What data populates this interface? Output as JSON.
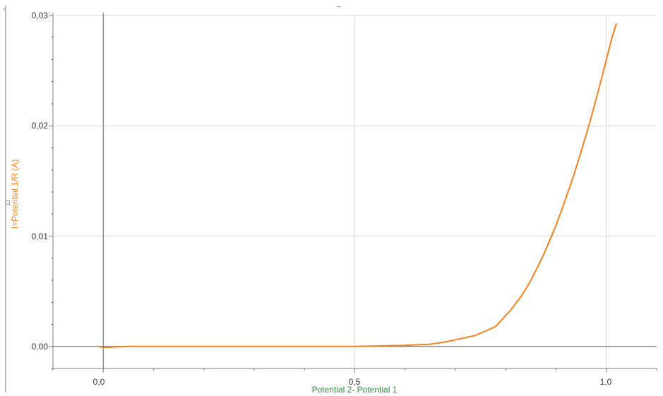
{
  "chart_data": {
    "type": "line",
    "title": "",
    "xlabel": "Potential 2- Potential 1",
    "ylabel": "I=Potential 1/R (A)",
    "xlim": [
      -0.1,
      1.1
    ],
    "ylim": [
      -0.002,
      0.03
    ],
    "x_ticks": [
      "0,0",
      "0,5",
      "1,0"
    ],
    "y_ticks": [
      "0,00",
      "0,01",
      "0,02",
      "0,03"
    ],
    "grid": true,
    "series": [
      {
        "color": "#f5821f",
        "x": [
          -0.01,
          0.0,
          0.05,
          0.1,
          0.2,
          0.3,
          0.4,
          0.5,
          0.6,
          0.65,
          0.68,
          0.7,
          0.72,
          0.74,
          0.76,
          0.78,
          0.79,
          0.8,
          0.81,
          0.82,
          0.83,
          0.84,
          0.85,
          0.86,
          0.87,
          0.88,
          0.89,
          0.9,
          0.91,
          0.92,
          0.93,
          0.94,
          0.95,
          0.96,
          0.97,
          0.98,
          0.99,
          1.0,
          1.01,
          1.02
        ],
        "y": [
          0.0,
          -0.0001,
          0.0,
          0.0,
          0.0,
          0.0,
          0.0,
          0.0,
          0.0001,
          0.0002,
          0.0004,
          0.0006,
          0.0008,
          0.001,
          0.0014,
          0.0018,
          0.0023,
          0.0028,
          0.0033,
          0.0039,
          0.0045,
          0.0052,
          0.006,
          0.0069,
          0.0078,
          0.0088,
          0.0099,
          0.011,
          0.0122,
          0.0135,
          0.0148,
          0.0162,
          0.0177,
          0.0192,
          0.0208,
          0.0225,
          0.0242,
          0.026,
          0.0278,
          0.0293
        ]
      }
    ]
  },
  "header": {
    "marker": "–"
  },
  "colors": {
    "axis_zero": "#666666",
    "grid": "#d9d9d9",
    "frame": "#7a7a7a",
    "xlabel_color": "#2e8b3a",
    "ylabel_color": "#f5821f"
  }
}
